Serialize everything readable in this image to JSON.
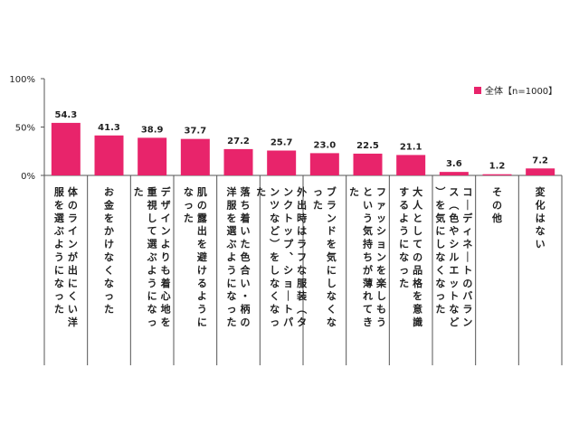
{
  "chart_data": {
    "type": "bar",
    "categories": [
      "体のラインが出にくい洋服を選ぶようになった",
      "お金をかけなくなった",
      "デザインよりも着心地を重視して選ぶようになった",
      "肌の露出を避けるようになった",
      "落ち着いた色合い・柄の洋服を選ぶようになった",
      "外出時はラフな服装（タンクトップ、ショートパンツなど）をしなくなった",
      "ブランドを気にしなくなった",
      "ファッションを楽しもうという気持ちが薄れてきた",
      "大人としての品格を意識するようになった",
      "コーディネートのバランス（色やシルエットなど）を気にしなくなった",
      "その他",
      "変化はない"
    ],
    "series": [
      {
        "name": "全体【n=1000】",
        "values": [
          54.3,
          41.3,
          38.9,
          37.7,
          27.2,
          25.7,
          23.0,
          22.5,
          21.1,
          3.6,
          1.2,
          7.2
        ]
      }
    ],
    "value_labels": [
      "54.3",
      "41.3",
      "38.9",
      "37.7",
      "27.2",
      "25.7",
      "23.0",
      "22.5",
      "21.1",
      "3.6",
      "1.2",
      "7.2"
    ],
    "yticks": [
      "0%",
      "50%",
      "100%"
    ],
    "ylim": [
      0,
      100
    ],
    "legend_position": "top-right",
    "grid": false,
    "color": "#e8246b"
  }
}
